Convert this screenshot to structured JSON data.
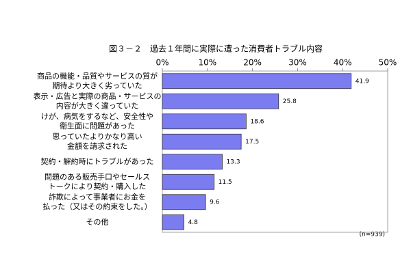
{
  "chart_data": {
    "type": "bar",
    "orientation": "horizontal",
    "title": "図３－２　過去１年間に実際に遭った消費者トラブル内容",
    "categories": [
      [
        "商品の機能・品質やサービスの質が",
        "期待より大きく劣っていた"
      ],
      [
        "表示・広告と実際の商品・サービスの",
        "内容が大きく違っていた"
      ],
      [
        "けが、病気をするなど、安全性や",
        "衛生面に問題があった"
      ],
      [
        "思っていたよりかなり高い",
        "金額を請求された"
      ],
      [
        "契約・解約時にトラブルがあった"
      ],
      [
        "問題のある販売手口やセールス",
        "トークにより契約・購入した"
      ],
      [
        "詐欺によって事業者にお金を",
        "払った（又はその約束をした。）"
      ],
      [
        "その他"
      ]
    ],
    "values": [
      41.9,
      25.8,
      18.6,
      17.5,
      13.3,
      11.5,
      9.6,
      4.8
    ],
    "color": "#7b7cf0",
    "xlim": [
      0,
      50
    ],
    "xticks": [
      {
        "value": 0,
        "label": "0%"
      },
      {
        "value": 10,
        "label": "10%"
      },
      {
        "value": 20,
        "label": "20%"
      },
      {
        "value": 30,
        "label": "30%"
      },
      {
        "value": 40,
        "label": "40%"
      },
      {
        "value": 50,
        "label": "50%"
      }
    ],
    "note": "(n=939)"
  }
}
